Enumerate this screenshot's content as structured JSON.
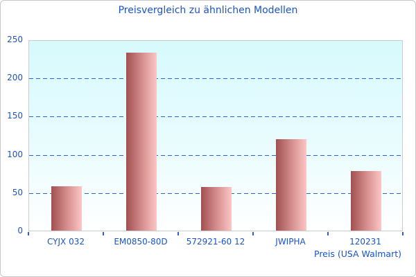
{
  "chart_data": {
    "type": "bar",
    "title": "Preisvergleich zu ähnlichen Modellen",
    "categories": [
      "CYJX 032",
      "EM0850-80D",
      "572921-60 12",
      "JWIPHA",
      "120231"
    ],
    "values": [
      58,
      233,
      57,
      120,
      78
    ],
    "xlabel": "Preis (USA Walmart)",
    "ylabel": "",
    "ylim": [
      0,
      250
    ],
    "ytick_step": 50,
    "ytick_labels": [
      "0",
      "50",
      "100",
      "150",
      "200",
      "250"
    ],
    "grid": "horizontal dashed lines at 50, 100, 150, 200",
    "legend_position": "none",
    "colors": {
      "title_text": "#1a53c8",
      "axis_text": "#1a53c8",
      "gridline": "#2e5fcc",
      "tick_mark": "#2e5fcc",
      "plot_border": "#cccccc",
      "plot_bg_top": "#d7fafd",
      "plot_bg_bottom": "#ffffff",
      "bar_gradient_left": "#a15050",
      "bar_gradient_mid": "#cf8686",
      "bar_gradient_right": "#fdc5c5"
    }
  }
}
